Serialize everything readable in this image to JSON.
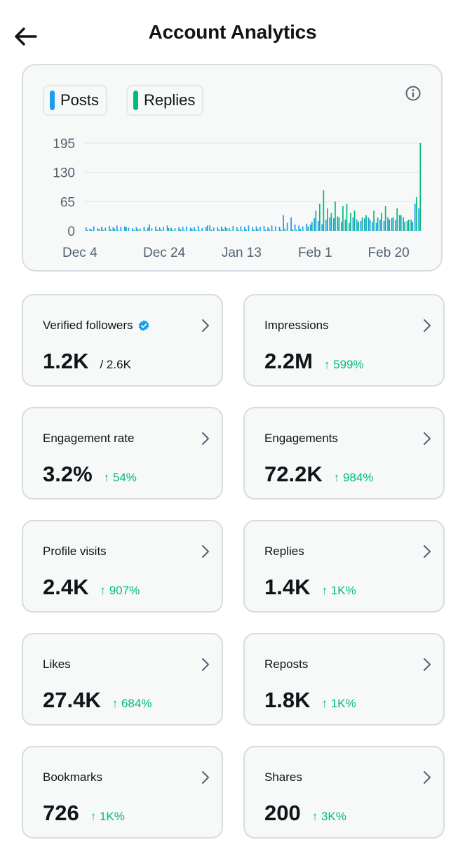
{
  "header": {
    "title": "Account Analytics"
  },
  "chart": {
    "legend": [
      {
        "label": "Posts",
        "color": "#1d9bf0"
      },
      {
        "label": "Replies",
        "color": "#00ba7c"
      }
    ]
  },
  "chart_data": {
    "type": "bar",
    "y_ticks": [
      0,
      65,
      130,
      195
    ],
    "ylim": [
      0,
      195
    ],
    "x_tick_labels": [
      "Dec 4",
      "Dec 24",
      "Jan 13",
      "Feb 1",
      "Feb 20"
    ],
    "x_tick_index": [
      0,
      20,
      40,
      59,
      78
    ],
    "grid": true,
    "legend_position": "top-left",
    "series": [
      {
        "name": "Posts",
        "color": "#1d9bf0",
        "values": [
          8,
          5,
          10,
          6,
          9,
          7,
          11,
          8,
          12,
          9,
          10,
          7,
          6,
          8,
          5,
          9,
          7,
          6,
          10,
          8,
          9,
          12,
          7,
          6,
          8,
          9,
          10,
          7,
          8,
          11,
          6,
          9,
          12,
          7,
          8,
          10,
          9,
          6,
          11,
          8,
          10,
          9,
          12,
          8,
          10,
          9,
          11,
          8,
          12,
          10,
          9,
          35,
          18,
          30,
          14,
          12,
          10,
          16,
          14,
          28,
          22,
          15,
          25,
          30,
          28,
          32,
          20,
          25,
          18,
          30,
          25,
          22,
          28,
          30,
          20,
          18,
          25,
          22,
          30,
          28,
          24,
          35,
          30,
          22,
          25,
          60,
          50
        ]
      },
      {
        "name": "Replies",
        "color": "#00ba7c",
        "values": [
          2,
          3,
          0,
          4,
          2,
          0,
          3,
          5,
          1,
          0,
          8,
          0,
          2,
          4,
          0,
          1,
          14,
          0,
          2,
          3,
          0,
          6,
          2,
          0,
          3,
          1,
          0,
          5,
          2,
          1,
          0,
          12,
          2,
          0,
          3,
          4,
          6,
          1,
          0,
          2,
          1,
          3,
          0,
          2,
          4,
          0,
          2,
          3,
          1,
          0,
          2,
          5,
          0,
          3,
          2,
          4,
          0,
          10,
          20,
          45,
          60,
          90,
          50,
          40,
          65,
          30,
          55,
          60,
          40,
          45,
          20,
          30,
          35,
          25,
          45,
          30,
          40,
          55,
          25,
          30,
          50,
          35,
          20,
          25,
          20,
          75,
          195
        ]
      }
    ]
  },
  "stats": [
    {
      "label": "Verified followers",
      "value": "1.2K",
      "sub": "/ 2.6K",
      "change": ""
    },
    {
      "label": "Impressions",
      "value": "2.2M",
      "sub": "",
      "change": "↑ 599%"
    },
    {
      "label": "Engagement rate",
      "value": "3.2%",
      "sub": "",
      "change": "↑ 54%"
    },
    {
      "label": "Engagements",
      "value": "72.2K",
      "sub": "",
      "change": "↑ 984%"
    },
    {
      "label": "Profile visits",
      "value": "2.4K",
      "sub": "",
      "change": "↑ 907%"
    },
    {
      "label": "Replies",
      "value": "1.4K",
      "sub": "",
      "change": "↑ 1K%"
    },
    {
      "label": "Likes",
      "value": "27.4K",
      "sub": "",
      "change": "↑ 684%"
    },
    {
      "label": "Reposts",
      "value": "1.8K",
      "sub": "",
      "change": "↑ 1K%"
    },
    {
      "label": "Bookmarks",
      "value": "726",
      "sub": "",
      "change": "↑ 1K%"
    },
    {
      "label": "Shares",
      "value": "200",
      "sub": "",
      "change": "↑ 3K%"
    }
  ]
}
